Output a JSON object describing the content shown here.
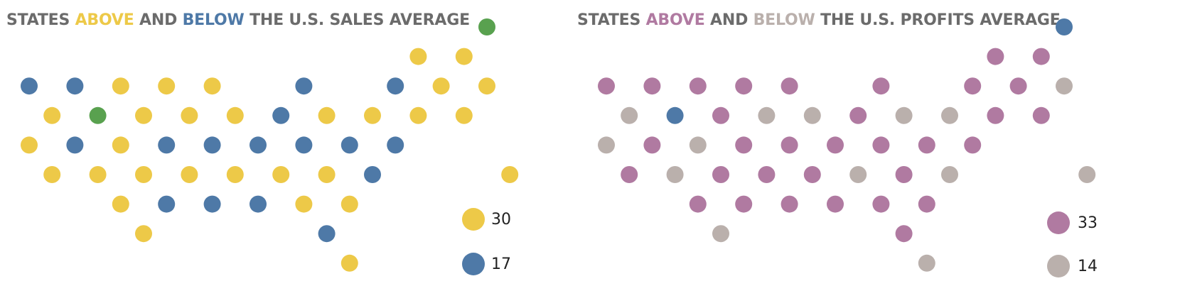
{
  "colors": {
    "title": "#6b6b6b",
    "above_sales": "#EDC948",
    "below_sales": "#4E79A7",
    "no_data": "#59A14F",
    "above_profit": "#B07AA1",
    "below_profit": "#BAB0AC"
  },
  "chart_data": [
    {
      "type": "scatter",
      "subtype": "hex-grid tile map of US states",
      "title": {
        "part1": "STATES ",
        "above": "ABOVE",
        "part2": " AND ",
        "below": "BELOW",
        "part3": " THE U.S. SALES AVERAGE"
      },
      "legend": [
        {
          "status": "above",
          "count": "30"
        },
        {
          "status": "below",
          "count": "17"
        }
      ],
      "points": [
        {
          "x": 20,
          "y": 0,
          "status": "none"
        },
        {
          "x": 17,
          "y": 1,
          "status": "above"
        },
        {
          "x": 19,
          "y": 1,
          "status": "above"
        },
        {
          "x": 0,
          "y": 2,
          "status": "below"
        },
        {
          "x": 2,
          "y": 2,
          "status": "below"
        },
        {
          "x": 4,
          "y": 2,
          "status": "above"
        },
        {
          "x": 6,
          "y": 2,
          "status": "above"
        },
        {
          "x": 8,
          "y": 2,
          "status": "above"
        },
        {
          "x": 12,
          "y": 2,
          "status": "below"
        },
        {
          "x": 16,
          "y": 2,
          "status": "below"
        },
        {
          "x": 18,
          "y": 2,
          "status": "above"
        },
        {
          "x": 20,
          "y": 2,
          "status": "above"
        },
        {
          "x": 1,
          "y": 3,
          "status": "above"
        },
        {
          "x": 3,
          "y": 3,
          "status": "none"
        },
        {
          "x": 5,
          "y": 3,
          "status": "above"
        },
        {
          "x": 7,
          "y": 3,
          "status": "above"
        },
        {
          "x": 9,
          "y": 3,
          "status": "above"
        },
        {
          "x": 11,
          "y": 3,
          "status": "below"
        },
        {
          "x": 13,
          "y": 3,
          "status": "above"
        },
        {
          "x": 15,
          "y": 3,
          "status": "above"
        },
        {
          "x": 17,
          "y": 3,
          "status": "above"
        },
        {
          "x": 19,
          "y": 3,
          "status": "above"
        },
        {
          "x": 0,
          "y": 4,
          "status": "above"
        },
        {
          "x": 2,
          "y": 4,
          "status": "below"
        },
        {
          "x": 4,
          "y": 4,
          "status": "above"
        },
        {
          "x": 6,
          "y": 4,
          "status": "below"
        },
        {
          "x": 8,
          "y": 4,
          "status": "below"
        },
        {
          "x": 10,
          "y": 4,
          "status": "below"
        },
        {
          "x": 12,
          "y": 4,
          "status": "below"
        },
        {
          "x": 14,
          "y": 4,
          "status": "below"
        },
        {
          "x": 16,
          "y": 4,
          "status": "below"
        },
        {
          "x": 1,
          "y": 5,
          "status": "above"
        },
        {
          "x": 3,
          "y": 5,
          "status": "above"
        },
        {
          "x": 5,
          "y": 5,
          "status": "above"
        },
        {
          "x": 7,
          "y": 5,
          "status": "above"
        },
        {
          "x": 9,
          "y": 5,
          "status": "above"
        },
        {
          "x": 11,
          "y": 5,
          "status": "above"
        },
        {
          "x": 13,
          "y": 5,
          "status": "above"
        },
        {
          "x": 15,
          "y": 5,
          "status": "below"
        },
        {
          "x": 21,
          "y": 5,
          "status": "above"
        },
        {
          "x": 4,
          "y": 6,
          "status": "above"
        },
        {
          "x": 6,
          "y": 6,
          "status": "below"
        },
        {
          "x": 8,
          "y": 6,
          "status": "below"
        },
        {
          "x": 10,
          "y": 6,
          "status": "below"
        },
        {
          "x": 12,
          "y": 6,
          "status": "above"
        },
        {
          "x": 14,
          "y": 6,
          "status": "above"
        },
        {
          "x": 5,
          "y": 7,
          "status": "above"
        },
        {
          "x": 13,
          "y": 7,
          "status": "below"
        },
        {
          "x": 14,
          "y": 8,
          "status": "above"
        }
      ]
    },
    {
      "type": "scatter",
      "subtype": "hex-grid tile map of US states",
      "title": {
        "part1": "STATES ",
        "above": "ABOVE",
        "part2": " AND ",
        "below": "BELOW",
        "part3": " THE U.S. PROFITS AVERAGE"
      },
      "legend": [
        {
          "status": "above",
          "count": "33"
        },
        {
          "status": "below",
          "count": "14"
        }
      ],
      "points": [
        {
          "x": 20,
          "y": 0,
          "status": "blue"
        },
        {
          "x": 17,
          "y": 1,
          "status": "above"
        },
        {
          "x": 19,
          "y": 1,
          "status": "above"
        },
        {
          "x": 0,
          "y": 2,
          "status": "above"
        },
        {
          "x": 2,
          "y": 2,
          "status": "above"
        },
        {
          "x": 4,
          "y": 2,
          "status": "above"
        },
        {
          "x": 6,
          "y": 2,
          "status": "above"
        },
        {
          "x": 8,
          "y": 2,
          "status": "above"
        },
        {
          "x": 12,
          "y": 2,
          "status": "above"
        },
        {
          "x": 16,
          "y": 2,
          "status": "above"
        },
        {
          "x": 18,
          "y": 2,
          "status": "above"
        },
        {
          "x": 20,
          "y": 2,
          "status": "below"
        },
        {
          "x": 1,
          "y": 3,
          "status": "below"
        },
        {
          "x": 3,
          "y": 3,
          "status": "blue"
        },
        {
          "x": 5,
          "y": 3,
          "status": "above"
        },
        {
          "x": 7,
          "y": 3,
          "status": "below"
        },
        {
          "x": 9,
          "y": 3,
          "status": "below"
        },
        {
          "x": 11,
          "y": 3,
          "status": "above"
        },
        {
          "x": 13,
          "y": 3,
          "status": "below"
        },
        {
          "x": 15,
          "y": 3,
          "status": "below"
        },
        {
          "x": 17,
          "y": 3,
          "status": "above"
        },
        {
          "x": 19,
          "y": 3,
          "status": "above"
        },
        {
          "x": 0,
          "y": 4,
          "status": "below"
        },
        {
          "x": 2,
          "y": 4,
          "status": "above"
        },
        {
          "x": 4,
          "y": 4,
          "status": "below"
        },
        {
          "x": 6,
          "y": 4,
          "status": "above"
        },
        {
          "x": 8,
          "y": 4,
          "status": "above"
        },
        {
          "x": 10,
          "y": 4,
          "status": "above"
        },
        {
          "x": 12,
          "y": 4,
          "status": "above"
        },
        {
          "x": 14,
          "y": 4,
          "status": "above"
        },
        {
          "x": 16,
          "y": 4,
          "status": "above"
        },
        {
          "x": 1,
          "y": 5,
          "status": "above"
        },
        {
          "x": 3,
          "y": 5,
          "status": "below"
        },
        {
          "x": 5,
          "y": 5,
          "status": "above"
        },
        {
          "x": 7,
          "y": 5,
          "status": "above"
        },
        {
          "x": 9,
          "y": 5,
          "status": "above"
        },
        {
          "x": 11,
          "y": 5,
          "status": "below"
        },
        {
          "x": 13,
          "y": 5,
          "status": "above"
        },
        {
          "x": 15,
          "y": 5,
          "status": "below"
        },
        {
          "x": 21,
          "y": 5,
          "status": "below"
        },
        {
          "x": 4,
          "y": 6,
          "status": "above"
        },
        {
          "x": 6,
          "y": 6,
          "status": "above"
        },
        {
          "x": 8,
          "y": 6,
          "status": "above"
        },
        {
          "x": 10,
          "y": 6,
          "status": "above"
        },
        {
          "x": 12,
          "y": 6,
          "status": "above"
        },
        {
          "x": 14,
          "y": 6,
          "status": "above"
        },
        {
          "x": 5,
          "y": 7,
          "status": "below"
        },
        {
          "x": 13,
          "y": 7,
          "status": "above"
        },
        {
          "x": 14,
          "y": 8,
          "status": "below"
        }
      ]
    }
  ]
}
